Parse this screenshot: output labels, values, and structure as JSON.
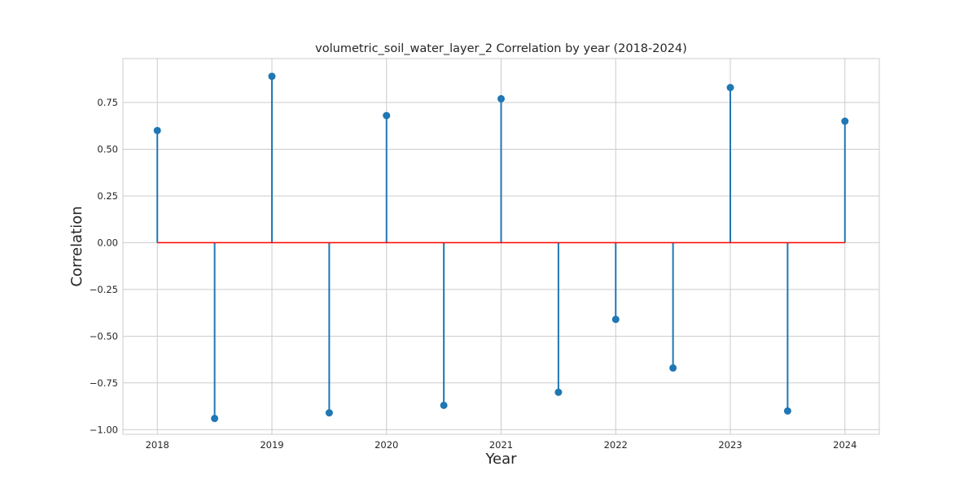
{
  "chart_data": {
    "type": "stem",
    "title": "volumetric_soil_water_layer_2 Correlation by year (2018-2024)",
    "xlabel": "Year",
    "ylabel": "Correlation",
    "x_ticks": [
      2018,
      2019,
      2020,
      2021,
      2022,
      2023,
      2024
    ],
    "y_ticks": [
      -1.0,
      -0.75,
      -0.5,
      -0.25,
      0.0,
      0.25,
      0.5,
      0.75
    ],
    "y_tick_labels": [
      "−1.00",
      "−0.75",
      "−0.50",
      "−0.25",
      "0.00",
      "0.25",
      "0.50",
      "0.75"
    ],
    "xlim": [
      2017.7,
      2024.3
    ],
    "ylim": [
      -1.025,
      0.985
    ],
    "grid": true,
    "series": [
      {
        "x": [
          2018,
          2018.5,
          2019,
          2019.5,
          2020,
          2020.5,
          2021,
          2021.5,
          2022,
          2022.5,
          2023,
          2023.5,
          2024
        ],
        "values": [
          0.6,
          -0.94,
          0.89,
          -0.91,
          0.68,
          -0.87,
          0.77,
          -0.8,
          -0.41,
          -0.67,
          0.83,
          -0.9,
          0.65
        ]
      }
    ],
    "colors": {
      "stem": "#1f77b4",
      "baseline": "#ff0000",
      "grid": "#cccccc",
      "frame": "#cccccc"
    }
  }
}
